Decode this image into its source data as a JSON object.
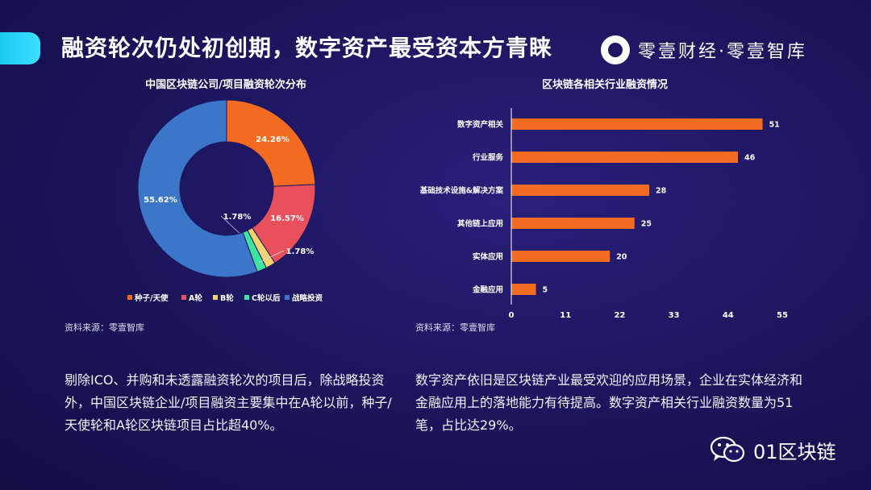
{
  "header": {
    "title": "融资轮次仍处初创期，数字资产最受资本方青睐",
    "brand": "零壹财经·零壹智库"
  },
  "donut": {
    "title": "中国区块链公司/项目融资轮次分布",
    "source": "资料来源：零壹智库"
  },
  "bar": {
    "title": "区块链各相关行业融资情况",
    "source": "资料来源：零壹智库"
  },
  "texts": {
    "left": "剔除ICO、并购和未透露融资轮次的项目后，除战略投资外，中国区块链企业/项目融资主要集中在A轮以前，种子/天使轮和A轮区块链项目占比超40%。",
    "right": "数字资产依旧是区块链产业最受欢迎的应用场景，企业在实体经济和金融应用上的落地能力有待提高。数字资产相关行业融资数量为51笔，占比达29%。"
  },
  "footer": {
    "wechat": "01区块链"
  },
  "colors": {
    "accent": "#1ecbf2",
    "bar": "#f26b21"
  },
  "chart_data": [
    {
      "type": "pie",
      "title": "中国区块链公司/项目融资轮次分布",
      "legend_position": "bottom",
      "slices": [
        {
          "name": "种子/天使",
          "value": 24.26,
          "label": "24.26%",
          "color": "#f26b21"
        },
        {
          "name": "A轮",
          "value": 16.57,
          "label": "16.57%",
          "color": "#e8505b"
        },
        {
          "name": "B轮",
          "value": 1.78,
          "label": "1.78%",
          "color": "#f3d36b"
        },
        {
          "name": "C轮以后",
          "value": 1.78,
          "label": "1.78%",
          "color": "#3ee3a0"
        },
        {
          "name": "战略投资",
          "value": 55.62,
          "label": "55.62%",
          "color": "#3b76c8"
        }
      ]
    },
    {
      "type": "bar",
      "orientation": "horizontal",
      "title": "区块链各相关行业融资情况",
      "categories": [
        "数字资产相关",
        "行业服务",
        "基础技术设施&解决方案",
        "其他链上应用",
        "实体应用",
        "金融应用"
      ],
      "values": [
        51,
        46,
        28,
        25,
        20,
        5
      ],
      "xlim": [
        0,
        55
      ],
      "xticks": [
        0,
        11,
        22,
        33,
        44,
        55
      ],
      "grid": false
    }
  ]
}
